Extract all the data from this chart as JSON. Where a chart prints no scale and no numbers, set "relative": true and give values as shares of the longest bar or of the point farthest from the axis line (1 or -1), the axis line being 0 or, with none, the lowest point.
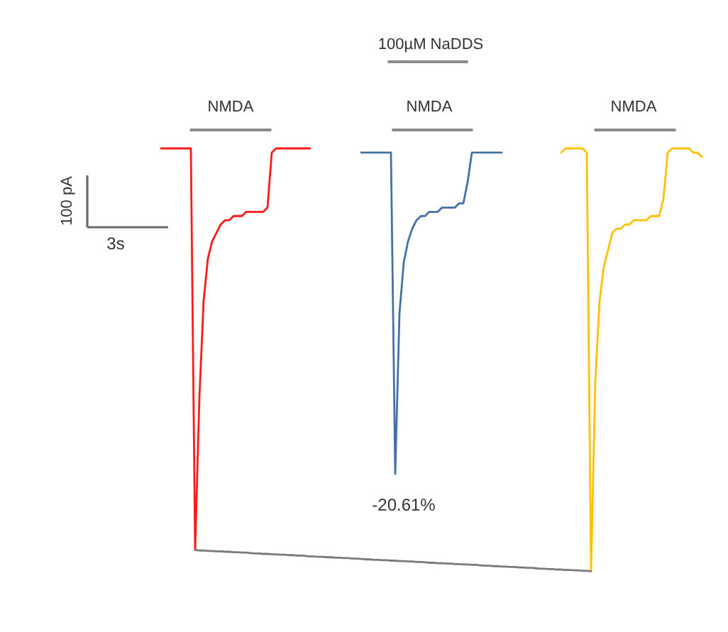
{
  "chart_data": {
    "type": "line",
    "relative": true,
    "categories": [
      null,
      null,
      null,
      null,
      null,
      null,
      null,
      null,
      null,
      null,
      null,
      null,
      null,
      null,
      null,
      null,
      null,
      null,
      null,
      null,
      null,
      null,
      null,
      null,
      null,
      null,
      null,
      null,
      null,
      null,
      null,
      null,
      null,
      null,
      null,
      null,
      null,
      null,
      null,
      null,
      null,
      null,
      null,
      null,
      null,
      null,
      null,
      null,
      null,
      null,
      null,
      null,
      null,
      null,
      null,
      null,
      null,
      null,
      null,
      null,
      null,
      null,
      null,
      null,
      null,
      null,
      null,
      null,
      null,
      null,
      null,
      null,
      null,
      null,
      null,
      null,
      null,
      null,
      null,
      null,
      null,
      null,
      null,
      null,
      null,
      null,
      null,
      null,
      null,
      null,
      null,
      null,
      null,
      null,
      null,
      null,
      null,
      null,
      null,
      null,
      null,
      null,
      null,
      null,
      null,
      null,
      null,
      null,
      null,
      null,
      null,
      null,
      null,
      null,
      null,
      null,
      null,
      null,
      null,
      null,
      null,
      null,
      null,
      null,
      null,
      null,
      null,
      null,
      null
    ],
    "series": [
      {
        "color": "#ff1a1a",
        "values": [
          1.0,
          1.0,
          1.0,
          1.0,
          1.0,
          1.0,
          1.0,
          1.0,
          0.05,
          0.41,
          0.64,
          0.74,
          0.78,
          0.8,
          0.82,
          0.83,
          0.83,
          0.84,
          0.84,
          0.84,
          0.85,
          0.85,
          0.85,
          0.85,
          0.85,
          0.86,
          0.99,
          1.0,
          1.0,
          1.0,
          1.0,
          1.0,
          1.0,
          1.0,
          1.0,
          1.0,
          null,
          null,
          null,
          null,
          null,
          null,
          null,
          null,
          null,
          null,
          null,
          null,
          null,
          null,
          null,
          null,
          null,
          null,
          null,
          null,
          null,
          null,
          null,
          null,
          null,
          null,
          null,
          null,
          null,
          null,
          null,
          null,
          null,
          null,
          null,
          null,
          null,
          null,
          null,
          null,
          null,
          null,
          null,
          null,
          null,
          null,
          null,
          null,
          null,
          null,
          null,
          null,
          null,
          null,
          null,
          null,
          null,
          null,
          null,
          null,
          null,
          null,
          null,
          null,
          null,
          null,
          null,
          null,
          null,
          null,
          null,
          null,
          null,
          null,
          null,
          null,
          null,
          null,
          null,
          null,
          null,
          null,
          null,
          null,
          null,
          null,
          null,
          null,
          null,
          null,
          null,
          null,
          null
        ]
      },
      {
        "color": "#4472a8",
        "values": [
          null,
          null,
          null,
          null,
          null,
          null,
          null,
          null,
          null,
          null,
          null,
          null,
          null,
          null,
          null,
          null,
          null,
          null,
          null,
          null,
          null,
          null,
          null,
          null,
          null,
          null,
          null,
          null,
          null,
          null,
          null,
          null,
          null,
          null,
          null,
          null,
          null,
          null,
          null,
          null,
          null,
          null,
          null,
          null,
          null,
          null,
          null,
          0.99,
          0.99,
          0.99,
          0.99,
          0.99,
          0.99,
          0.99,
          0.99,
          0.23,
          0.61,
          0.73,
          0.78,
          0.81,
          0.83,
          0.84,
          0.84,
          0.85,
          0.85,
          0.85,
          0.86,
          0.86,
          0.86,
          0.86,
          0.87,
          0.87,
          0.92,
          0.99,
          0.99,
          0.99,
          0.99,
          0.99,
          0.99,
          0.99,
          0.99,
          null,
          null,
          null,
          null,
          null,
          null,
          null,
          null,
          null,
          null,
          null,
          null,
          null,
          null,
          null,
          null,
          null,
          null,
          null,
          null,
          null,
          null,
          null,
          null,
          null,
          null,
          null,
          null,
          null,
          null,
          null,
          null,
          null,
          null,
          null,
          null,
          null,
          null,
          null,
          null,
          null,
          null,
          null,
          null,
          null,
          null,
          null,
          null
        ]
      },
      {
        "color": "#ffc000",
        "values": [
          null,
          null,
          null,
          null,
          null,
          null,
          null,
          null,
          null,
          null,
          null,
          null,
          null,
          null,
          null,
          null,
          null,
          null,
          null,
          null,
          null,
          null,
          null,
          null,
          null,
          null,
          null,
          null,
          null,
          null,
          null,
          null,
          null,
          null,
          null,
          null,
          null,
          null,
          null,
          null,
          null,
          null,
          null,
          null,
          null,
          null,
          null,
          null,
          null,
          null,
          null,
          null,
          null,
          null,
          null,
          null,
          null,
          null,
          null,
          null,
          null,
          null,
          null,
          null,
          null,
          null,
          null,
          null,
          null,
          null,
          null,
          null,
          null,
          null,
          null,
          null,
          null,
          null,
          null,
          null,
          null,
          null,
          null,
          null,
          null,
          null,
          null,
          null,
          null,
          null,
          null,
          null,
          null,
          null,
          0.99,
          1.0,
          1.0,
          1.0,
          1.0,
          1.0,
          0.99,
          0,
          0.45,
          0.64,
          0.72,
          0.76,
          0.8,
          0.81,
          0.81,
          0.82,
          0.82,
          0.83,
          0.83,
          0.83,
          0.83,
          0.84,
          0.84,
          0.84,
          0.88,
          0.99,
          1.0,
          1.0,
          1.0,
          1.0,
          1.0,
          0.99,
          0.99,
          0.98,
          null
        ]
      },
      {
        "color": "#7a7a7a",
        "values": [
          null,
          null,
          null,
          null,
          null,
          null,
          null,
          null,
          0.05,
          0.049,
          0.049,
          0.048,
          0.048,
          0.047,
          0.047,
          0.046,
          0.046,
          0.045,
          0.045,
          0.044,
          0.044,
          0.043,
          0.042,
          0.042,
          0.041,
          0.041,
          0.04,
          0.04,
          0.039,
          0.039,
          0.038,
          0.038,
          0.037,
          0.037,
          0.036,
          0.035,
          0.035,
          0.034,
          0.034,
          0.033,
          0.033,
          0.032,
          0.032,
          0.031,
          0.031,
          0.03,
          0.03,
          0.029,
          0.028,
          0.028,
          0.027,
          0.027,
          0.026,
          0.026,
          0.025,
          0.025,
          0.024,
          0.024,
          0.023,
          0.023,
          0.022,
          0.022,
          0.021,
          0.02,
          0.02,
          0.019,
          0.019,
          0.018,
          0.018,
          0.017,
          0.017,
          0.016,
          0.016,
          0.015,
          0.015,
          0.014,
          0.013,
          0.013,
          0.012,
          0.012,
          0.011,
          0.011,
          0.01,
          0.01,
          0.009,
          0.009,
          0.008,
          0.008,
          0.007,
          0.006,
          0.006,
          0.005,
          0.005,
          0.004,
          0.004,
          0.003,
          0.003,
          0.002,
          0.002,
          0.001,
          0.001,
          0,
          null,
          null,
          null,
          null,
          null,
          null,
          null,
          null,
          null,
          null,
          null,
          null,
          null,
          null,
          null,
          null,
          null,
          null,
          null,
          null,
          null,
          null,
          null,
          null,
          null,
          null,
          null
        ]
      }
    ],
    "annotations": [
      "100µM NaDDS",
      "NMDA",
      "NMDA",
      "NMDA",
      "100 pA",
      "3s",
      "-20.61%"
    ]
  }
}
